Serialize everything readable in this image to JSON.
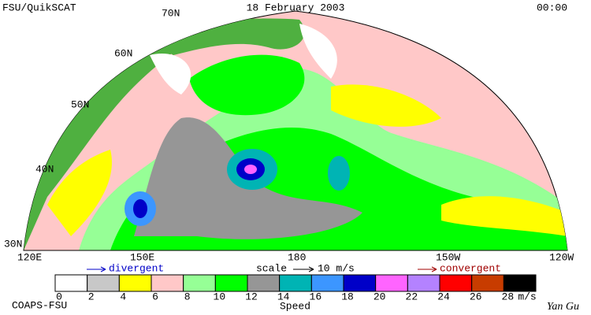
{
  "header": {
    "title": "FSU/QuikSCAT",
    "date": "18 February 2003",
    "time": "00:00"
  },
  "map": {
    "lat_labels": [
      "70N",
      "60N",
      "50N",
      "40N",
      "30N"
    ],
    "lon_labels": [
      "120E",
      "150E",
      "180",
      "150W",
      "120W"
    ]
  },
  "legend": {
    "divergent": "divergent",
    "scale": "scale",
    "scale_value": "10 m/s",
    "convergent": "convergent"
  },
  "colorbar": {
    "levels": [
      0,
      2,
      4,
      6,
      8,
      10,
      12,
      14,
      16,
      18,
      20,
      22,
      24,
      26,
      28
    ],
    "colors": [
      "#ffffff",
      "#c8c8c8",
      "#ffff00",
      "#ffc8c8",
      "#96ff96",
      "#00ff00",
      "#969696",
      "#00b4b4",
      "#3c96ff",
      "#0000c8",
      "#ff64ff",
      "#b482ff",
      "#ff0000",
      "#c83c00",
      "#000000"
    ],
    "unit": "m/s",
    "label": "Speed"
  },
  "footer": {
    "left": "COAPS-FSU",
    "right": "Yan Gu"
  }
}
